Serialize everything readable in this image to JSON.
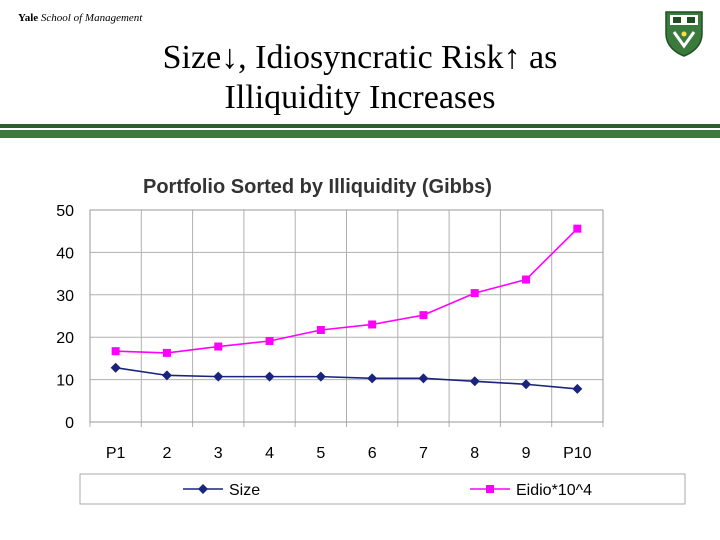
{
  "brand": {
    "bold": "Yale",
    "italic": "School of Management"
  },
  "slide": {
    "title_line1": "Size↓, Idiosyncratic Risk↑ as",
    "title_line2": "Illiquidity Increases"
  },
  "colors": {
    "accent_green": "#3a7a3c",
    "size_series": "#1a237e",
    "eidio_series": "#ff00ff"
  },
  "chart_data": {
    "type": "line",
    "title": "Portfolio Sorted by Illiquidity (Gibbs)",
    "categories": [
      "P1",
      "2",
      "3",
      "4",
      "5",
      "6",
      "7",
      "8",
      "9",
      "P10"
    ],
    "series": [
      {
        "name": "Size",
        "values": [
          12.8,
          11.0,
          10.7,
          10.7,
          10.7,
          10.3,
          10.3,
          9.6,
          8.9,
          7.8
        ],
        "color": "#1a237e",
        "marker": "diamond"
      },
      {
        "name": "Eidio*10^4",
        "values": [
          16.7,
          16.3,
          17.8,
          19.1,
          21.7,
          23.0,
          25.2,
          30.4,
          33.6,
          45.6
        ],
        "color": "#ff00ff",
        "marker": "square"
      }
    ],
    "ylim": [
      0,
      50
    ],
    "yticks": [
      0,
      10,
      20,
      30,
      40,
      50
    ],
    "grid": true,
    "legend": "bottom"
  }
}
